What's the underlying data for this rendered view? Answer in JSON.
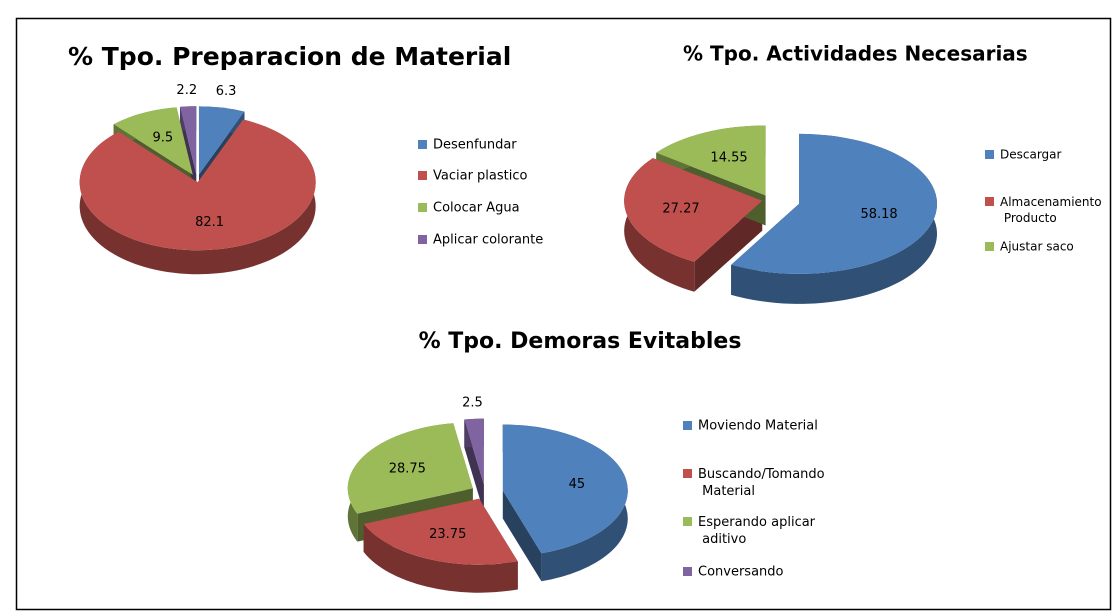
{
  "chart_data": [
    {
      "type": "pie",
      "title": "% Tpo. Preparacion de Material",
      "categories": [
        "Desenfundar",
        "Vaciar plastico",
        "Colocar Agua",
        "Aplicar colorante"
      ],
      "values": [
        6.3,
        82.1,
        9.5,
        2.2
      ],
      "colors": [
        "#4f81bd",
        "#c0504d",
        "#9bbb59",
        "#8064a2"
      ]
    },
    {
      "type": "pie",
      "title": "% Tpo. Actividades Necesarias",
      "categories": [
        "Descargar",
        "Almacenamiento Producto",
        "Ajustar saco"
      ],
      "values": [
        58.18,
        27.27,
        14.55
      ],
      "colors": [
        "#4f81bd",
        "#c0504d",
        "#9bbb59"
      ]
    },
    {
      "type": "pie",
      "title": "% Tpo. Demoras Evitables",
      "categories": [
        "Moviendo Material",
        "Buscando/Tomando Material",
        "Esperando aplicar aditivo",
        "Conversando"
      ],
      "values": [
        45,
        23.75,
        28.75,
        2.5
      ],
      "colors": [
        "#4f81bd",
        "#c0504d",
        "#9bbb59",
        "#8064a2"
      ]
    }
  ]
}
